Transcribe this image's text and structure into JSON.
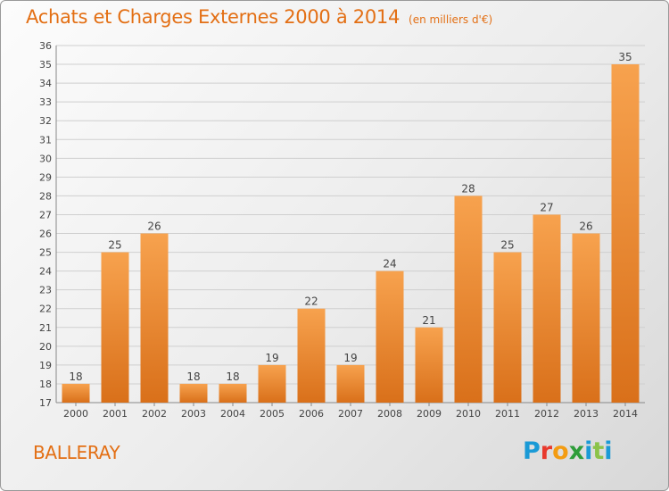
{
  "header": {
    "title": "Achats et Charges Externes 2000 à 2014",
    "unit": "(en milliers d'€)"
  },
  "footer": {
    "commune": "BALLERAY",
    "logo": "Proxiti"
  },
  "colors": {
    "bar_light": "#f7a24e",
    "bar_dark": "#d9701a",
    "accent": "#e36f14",
    "grid": "#cfcfcf"
  },
  "chart_data": {
    "type": "bar",
    "categories": [
      "2000",
      "2001",
      "2002",
      "2003",
      "2004",
      "2005",
      "2006",
      "2007",
      "2008",
      "2009",
      "2010",
      "2011",
      "2012",
      "2013",
      "2014"
    ],
    "values": [
      18,
      25,
      26,
      18,
      18,
      19,
      22,
      19,
      24,
      21,
      28,
      25,
      27,
      26,
      35
    ],
    "ylim": [
      17,
      36
    ],
    "yticks": [
      17,
      18,
      19,
      20,
      21,
      22,
      23,
      24,
      25,
      26,
      27,
      28,
      29,
      30,
      31,
      32,
      33,
      34,
      35,
      36
    ],
    "grid": true,
    "legend": "none"
  }
}
